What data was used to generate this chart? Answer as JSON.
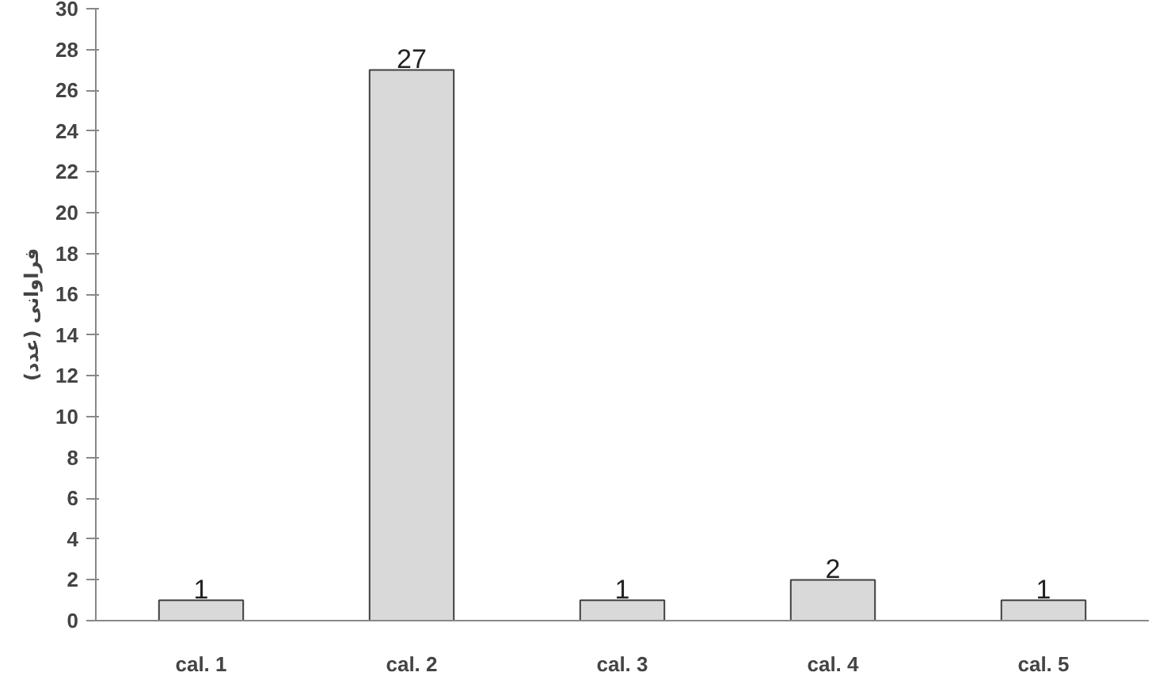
{
  "chart_data": {
    "type": "bar",
    "ylabel": "فراوانی (عدد)",
    "categories": [
      "cal. 1",
      "cal. 2",
      "cal. 3",
      "cal. 4",
      "cal. 5"
    ],
    "values": [
      1,
      27,
      1,
      2,
      1
    ],
    "color": "#d9d9d9",
    "data_labels": true,
    "ylim": [
      0,
      30
    ],
    "yticks": [
      0,
      2,
      4,
      6,
      8,
      10,
      12,
      14,
      16,
      18,
      20,
      22,
      24,
      26,
      28,
      30
    ],
    "grid": false
  }
}
